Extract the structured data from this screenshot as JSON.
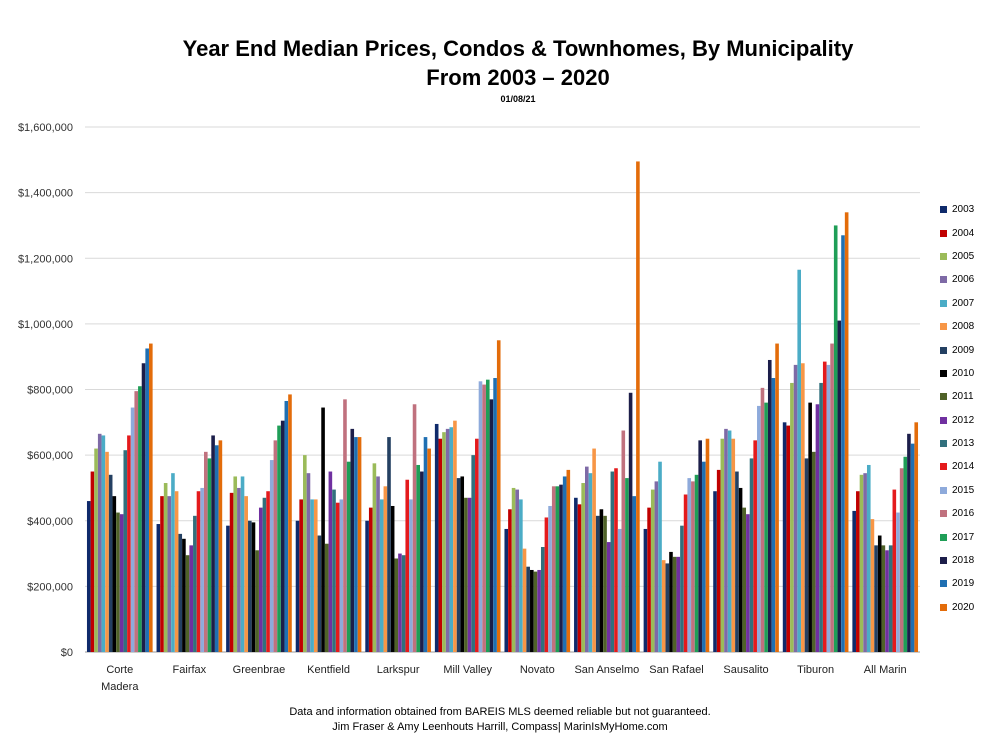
{
  "title_line1": "Year End Median Prices, Condos & Townhomes, By Municipality",
  "title_line2": "From 2003 – 2020",
  "subtitle": "01/08/21",
  "footer_line1": "Data and information obtained from BAREIS MLS deemed reliable but not guaranteed.",
  "footer_line2": "Jim Fraser & Amy Leenhouts Harrill, Compass| MarinIsMyHome.com",
  "chart_data": {
    "type": "bar",
    "title": "Year End Median Prices, Condos & Townhomes, By Municipality",
    "subtitle": "From 2003 – 2020",
    "ylim": [
      0,
      1600000
    ],
    "yticks": [
      0,
      200000,
      400000,
      600000,
      800000,
      1000000,
      1200000,
      1400000,
      1600000
    ],
    "ytick_labels": [
      "$0",
      "$200,000",
      "$400,000",
      "$600,000",
      "$800,000",
      "$1,000,000",
      "$1,200,000",
      "$1,400,000",
      "$1,600,000"
    ],
    "grid": true,
    "legend_position": "right",
    "categories": [
      [
        "Corte",
        "Madera"
      ],
      [
        "Fairfax"
      ],
      [
        "Greenbrae"
      ],
      [
        "Kentfield"
      ],
      [
        "Larkspur"
      ],
      [
        "Mill Valley"
      ],
      [
        "Novato"
      ],
      [
        "San Anselmo"
      ],
      [
        "San Rafael"
      ],
      [
        "Sausalito"
      ],
      [
        "Tiburon"
      ],
      [
        "All Marin"
      ]
    ],
    "series": [
      {
        "name": "2003",
        "color": "#0f2a6b",
        "values": [
          460000,
          390000,
          385000,
          400000,
          400000,
          695000,
          375000,
          470000,
          375000,
          490000,
          700000,
          430000
        ]
      },
      {
        "name": "2004",
        "color": "#c00000",
        "values": [
          550000,
          475000,
          485000,
          465000,
          440000,
          650000,
          435000,
          450000,
          440000,
          555000,
          690000,
          490000
        ]
      },
      {
        "name": "2005",
        "color": "#9bbb59",
        "values": [
          620000,
          515000,
          535000,
          600000,
          575000,
          670000,
          500000,
          515000,
          495000,
          650000,
          820000,
          540000
        ]
      },
      {
        "name": "2006",
        "color": "#7e6aa6",
        "values": [
          665000,
          475000,
          500000,
          545000,
          535000,
          680000,
          495000,
          565000,
          520000,
          680000,
          875000,
          545000
        ]
      },
      {
        "name": "2007",
        "color": "#4bacc6",
        "values": [
          660000,
          545000,
          535000,
          465000,
          465000,
          685000,
          465000,
          545000,
          580000,
          675000,
          1165000,
          570000
        ]
      },
      {
        "name": "2008",
        "color": "#f79646",
        "values": [
          610000,
          490000,
          475000,
          465000,
          505000,
          705000,
          315000,
          620000,
          280000,
          650000,
          880000,
          405000
        ]
      },
      {
        "name": "2009",
        "color": "#244062",
        "values": [
          540000,
          360000,
          400000,
          355000,
          655000,
          530000,
          260000,
          415000,
          270000,
          550000,
          590000,
          325000
        ]
      },
      {
        "name": "2010",
        "color": "#000000",
        "values": [
          475000,
          345000,
          395000,
          745000,
          445000,
          535000,
          250000,
          435000,
          305000,
          500000,
          760000,
          355000
        ]
      },
      {
        "name": "2011",
        "color": "#4f6228",
        "values": [
          425000,
          295000,
          310000,
          330000,
          285000,
          470000,
          245000,
          415000,
          290000,
          440000,
          610000,
          325000
        ]
      },
      {
        "name": "2012",
        "color": "#7030a0",
        "values": [
          420000,
          325000,
          440000,
          550000,
          300000,
          470000,
          250000,
          335000,
          290000,
          420000,
          755000,
          310000
        ]
      },
      {
        "name": "2013",
        "color": "#31707d",
        "values": [
          615000,
          415000,
          470000,
          495000,
          295000,
          600000,
          320000,
          550000,
          385000,
          590000,
          820000,
          325000
        ]
      },
      {
        "name": "2014",
        "color": "#e41a1c",
        "values": [
          660000,
          490000,
          490000,
          455000,
          525000,
          650000,
          410000,
          560000,
          480000,
          645000,
          885000,
          495000
        ]
      },
      {
        "name": "2015",
        "color": "#8eaadb",
        "values": [
          745000,
          500000,
          585000,
          465000,
          465000,
          825000,
          445000,
          375000,
          530000,
          750000,
          875000,
          425000
        ]
      },
      {
        "name": "2016",
        "color": "#c0717e",
        "values": [
          795000,
          610000,
          645000,
          770000,
          755000,
          815000,
          505000,
          675000,
          520000,
          805000,
          940000,
          560000
        ]
      },
      {
        "name": "2017",
        "color": "#1f9e57",
        "values": [
          810000,
          590000,
          690000,
          580000,
          570000,
          830000,
          505000,
          530000,
          540000,
          760000,
          1300000,
          595000
        ]
      },
      {
        "name": "2018",
        "color": "#1c1e4a",
        "values": [
          880000,
          660000,
          705000,
          680000,
          550000,
          770000,
          510000,
          790000,
          645000,
          890000,
          1010000,
          665000
        ]
      },
      {
        "name": "2019",
        "color": "#1f6fb2",
        "values": [
          925000,
          630000,
          765000,
          655000,
          655000,
          835000,
          535000,
          475000,
          580000,
          835000,
          1270000,
          635000
        ]
      },
      {
        "name": "2020",
        "color": "#e36c0a",
        "values": [
          940000,
          645000,
          785000,
          655000,
          620000,
          950000,
          555000,
          1495000,
          650000,
          940000,
          1340000,
          700000
        ]
      }
    ]
  }
}
